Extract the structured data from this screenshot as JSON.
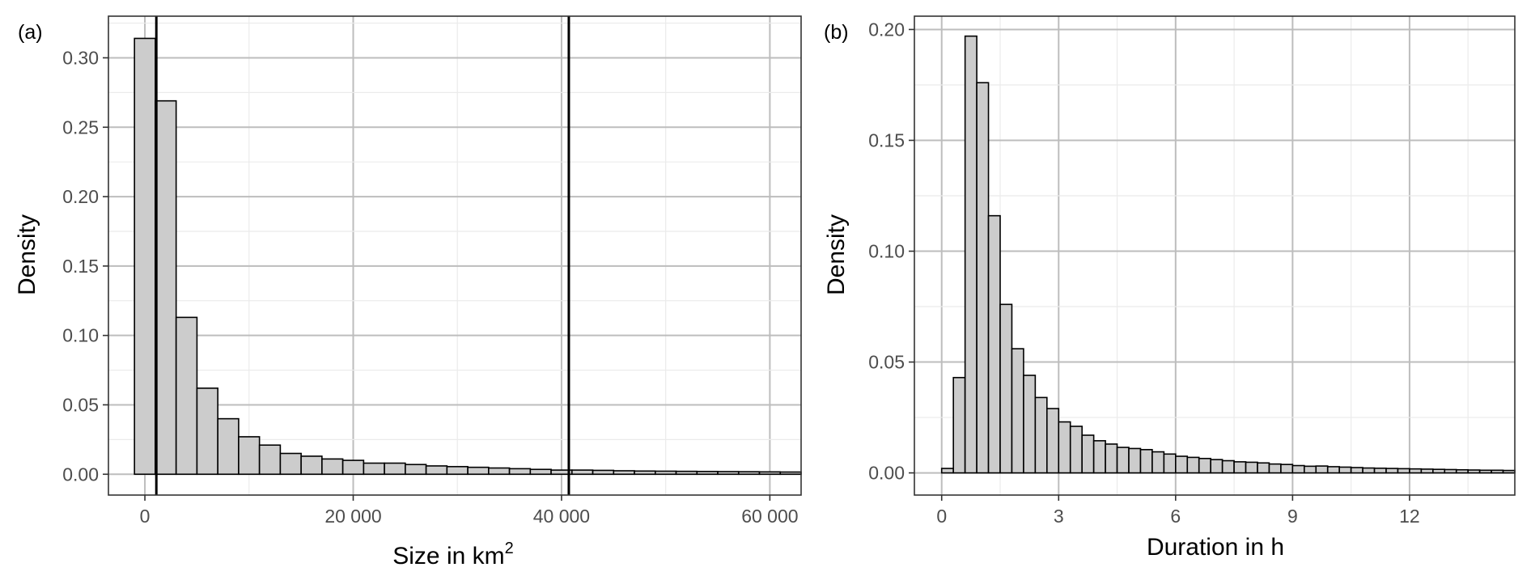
{
  "chart_data": [
    {
      "type": "histogram",
      "panel_tag": "(a)",
      "xlabel": "Size in km",
      "xlabel_superscript": "2",
      "ylabel": "Density",
      "xlim": [
        -3500,
        63000
      ],
      "ylim": [
        -0.015,
        0.33
      ],
      "x_ticks": [
        0,
        20000,
        40000,
        60000
      ],
      "x_tick_labels": [
        "0",
        "20 000",
        "40 000",
        "60 000"
      ],
      "y_ticks": [
        0,
        0.05,
        0.1,
        0.15,
        0.2,
        0.25,
        0.3
      ],
      "y_tick_labels": [
        "0.00",
        "0.05",
        "0.10",
        "0.15",
        "0.20",
        "0.25",
        "0.30"
      ],
      "grid": true,
      "bar_fill": "#cccccc",
      "bar_stroke": "#000000",
      "bin_start": -1000,
      "bin_width": 2000,
      "values": [
        0.314,
        0.269,
        0.113,
        0.062,
        0.04,
        0.027,
        0.021,
        0.015,
        0.013,
        0.011,
        0.01,
        0.008,
        0.008,
        0.007,
        0.006,
        0.0055,
        0.005,
        0.0045,
        0.004,
        0.0035,
        0.003,
        0.003,
        0.0028,
        0.0025,
        0.0023,
        0.0022,
        0.0021,
        0.002,
        0.0019,
        0.0018,
        0.0017,
        0.0016
      ],
      "vlines": [
        1100,
        40700
      ]
    },
    {
      "type": "histogram",
      "panel_tag": "(b)",
      "xlabel": "Duration in h",
      "ylabel": "Density",
      "xlim": [
        -0.7,
        14.7
      ],
      "ylim": [
        -0.01,
        0.206
      ],
      "x_ticks": [
        0,
        3,
        6,
        9,
        12
      ],
      "x_tick_labels": [
        "0",
        "3",
        "6",
        "9",
        "12"
      ],
      "y_ticks": [
        0,
        0.05,
        0.1,
        0.15,
        0.2
      ],
      "y_tick_labels": [
        "0.00",
        "0.05",
        "0.10",
        "0.15",
        "0.20"
      ],
      "grid": true,
      "bar_fill": "#cccccc",
      "bar_stroke": "#000000",
      "bin_start": 0,
      "bin_width": 0.3,
      "values": [
        0.002,
        0.043,
        0.197,
        0.176,
        0.116,
        0.076,
        0.056,
        0.044,
        0.034,
        0.029,
        0.023,
        0.021,
        0.017,
        0.0145,
        0.013,
        0.0115,
        0.011,
        0.0105,
        0.0095,
        0.0085,
        0.0075,
        0.007,
        0.0065,
        0.006,
        0.0055,
        0.005,
        0.0048,
        0.0045,
        0.004,
        0.0038,
        0.0033,
        0.003,
        0.0031,
        0.0028,
        0.0026,
        0.0024,
        0.0022,
        0.0021,
        0.002,
        0.0019,
        0.0018,
        0.0017,
        0.0016,
        0.0015,
        0.0014,
        0.0013,
        0.0012,
        0.0012,
        0.0011
      ]
    }
  ]
}
